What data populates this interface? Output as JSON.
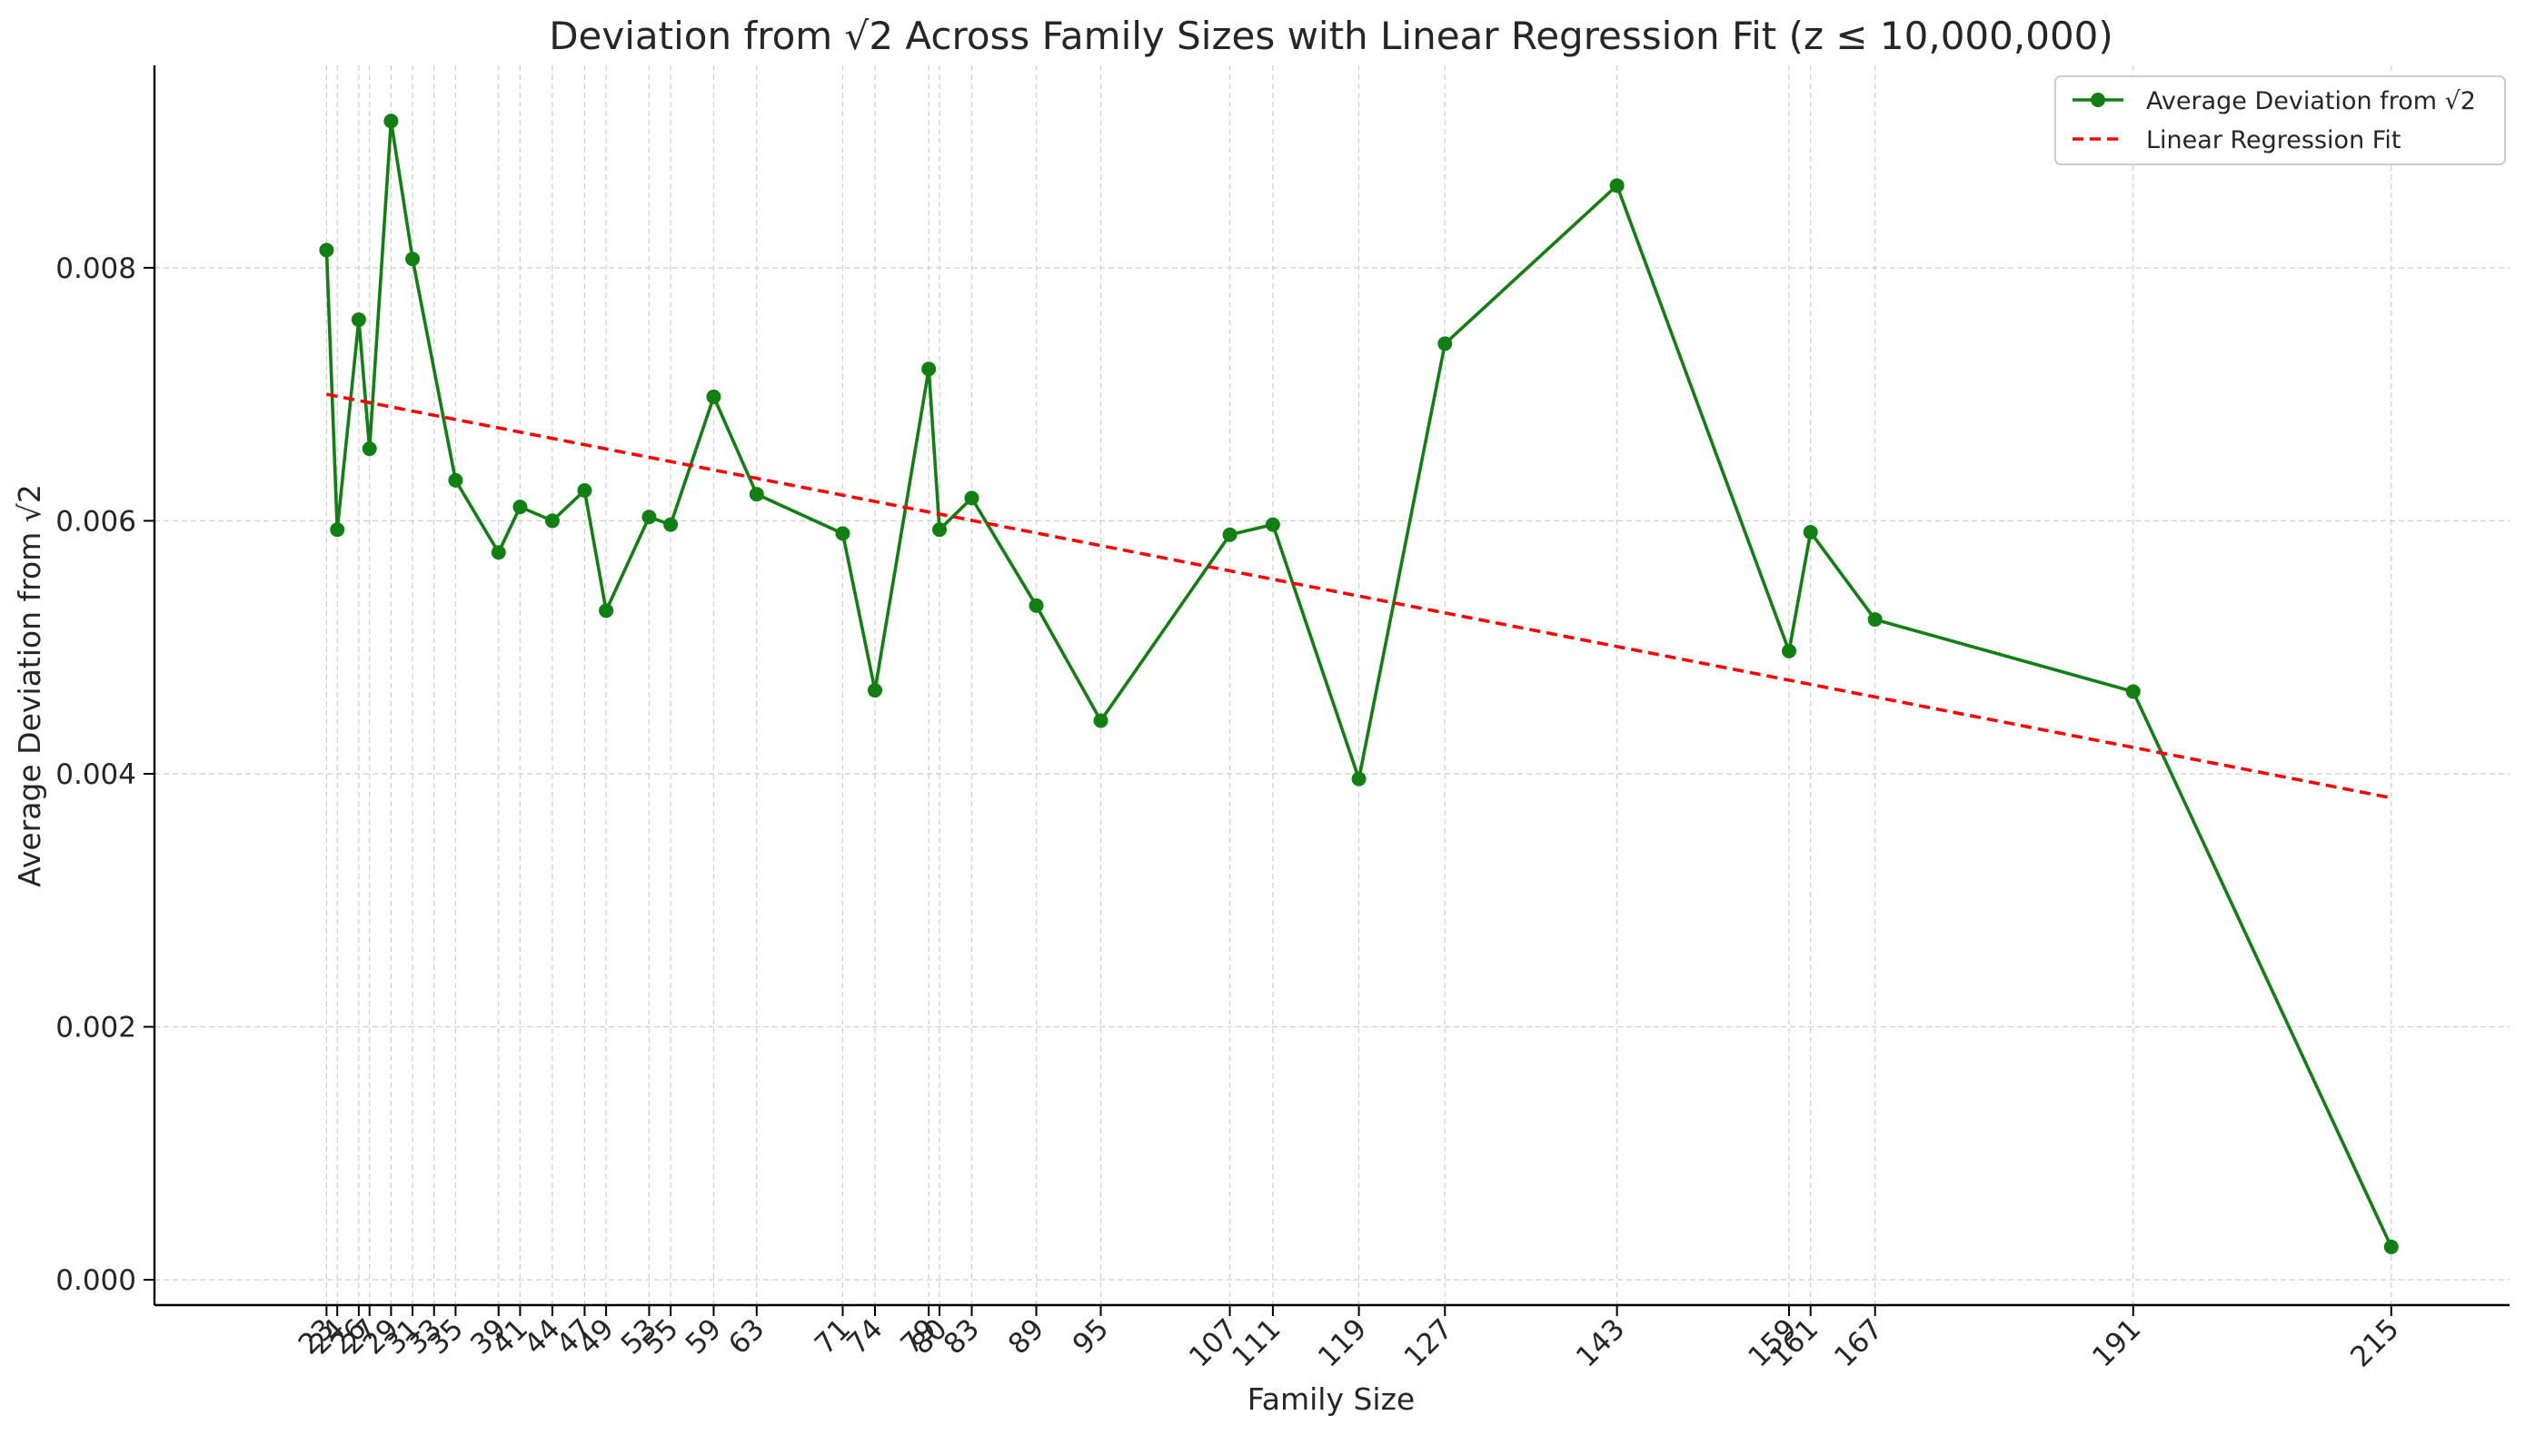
{
  "chart_data": {
    "type": "line",
    "title": "Deviation from √2 Across Family Sizes with Linear Regression Fit (z ≤ 10,000,000)",
    "xlabel": "Family Size",
    "ylabel": "Average Deviation from √2",
    "ylim": [
      -0.0002,
      0.0096
    ],
    "xlim": [
      7,
      226
    ],
    "x_ticks": [
      23,
      24,
      26,
      27,
      29,
      31,
      33,
      35,
      39,
      41,
      44,
      47,
      49,
      53,
      55,
      59,
      63,
      71,
      74,
      79,
      80,
      83,
      89,
      95,
      107,
      111,
      119,
      127,
      143,
      159,
      161,
      167,
      191,
      215
    ],
    "y_ticks": [
      "0.000",
      "0.002",
      "0.004",
      "0.006",
      "0.008"
    ],
    "y_tick_values": [
      0,
      0.002,
      0.004,
      0.006,
      0.008
    ],
    "grid": true,
    "legend_position": "top-right",
    "series": [
      {
        "name": "Average Deviation from √2",
        "color": "#117f11",
        "style": "solid-with-markers",
        "x": [
          23,
          24,
          26,
          27,
          29,
          31,
          35,
          39,
          41,
          44,
          47,
          49,
          53,
          55,
          59,
          63,
          71,
          74,
          79,
          80,
          83,
          89,
          95,
          107,
          111,
          119,
          127,
          143,
          159,
          161,
          167,
          191,
          215
        ],
        "values": [
          0.00814,
          0.00593,
          0.00759,
          0.00657,
          0.00916,
          0.00807,
          0.00632,
          0.00575,
          0.00611,
          0.006,
          0.00624,
          0.00529,
          0.00603,
          0.00597,
          0.00698,
          0.00621,
          0.0059,
          0.00466,
          0.0072,
          0.00593,
          0.00618,
          0.00533,
          0.00442,
          0.00589,
          0.00597,
          0.00396,
          0.0074,
          0.00865,
          0.00497,
          0.00591,
          0.00522,
          0.00465,
          0.00026
        ]
      },
      {
        "name": "Linear Regression Fit",
        "color": "#ff0000",
        "style": "dashed",
        "x": [
          23,
          215
        ],
        "values": [
          0.007,
          0.00381
        ]
      }
    ]
  }
}
